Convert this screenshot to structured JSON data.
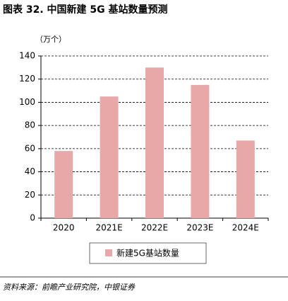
{
  "chart_data": {
    "type": "bar",
    "title": "图表 32. 中国新建 5G 基站数量预测",
    "y_label": "（万个）",
    "categories": [
      "2020",
      "2021E",
      "2022E",
      "2023E",
      "2024E"
    ],
    "series": [
      {
        "name": "新建5G基站数量",
        "color": "#e8a8a8",
        "values": [
          58,
          105,
          130,
          115,
          67
        ]
      }
    ],
    "ylim": [
      0,
      140
    ],
    "yticks": [
      0,
      20,
      40,
      60,
      80,
      100,
      120,
      140
    ],
    "grid": true,
    "legend": "bottom"
  },
  "source": "资料来源：前瞻产业研究院，中银证券"
}
